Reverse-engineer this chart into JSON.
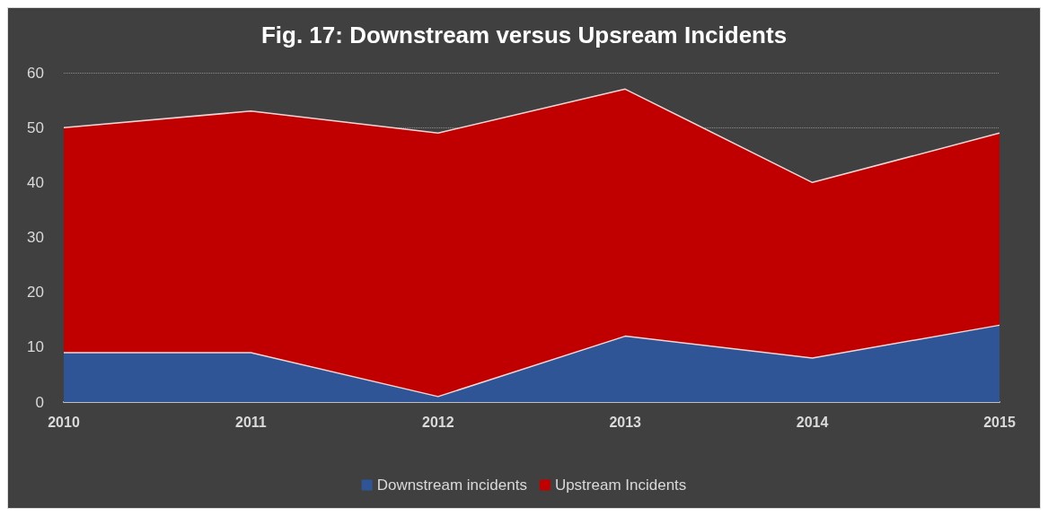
{
  "chart_data": {
    "type": "area",
    "title": "Fig. 17: Downstream versus Upsream Incidents",
    "stacked": true,
    "categories": [
      "2010",
      "2011",
      "2012",
      "2013",
      "2014",
      "2015"
    ],
    "series": [
      {
        "name": "Downstream incidents",
        "color": "#2f5597",
        "values": [
          9,
          9,
          1,
          12,
          8,
          14
        ]
      },
      {
        "name": "Upstream Incidents",
        "color": "#c00000",
        "values": [
          41,
          44,
          48,
          45,
          32,
          35
        ]
      }
    ],
    "ylim": [
      0,
      60
    ],
    "yticks": [
      0,
      10,
      20,
      30,
      40,
      50,
      60
    ],
    "grid": "y",
    "legend": "bottom",
    "marker": "none"
  }
}
